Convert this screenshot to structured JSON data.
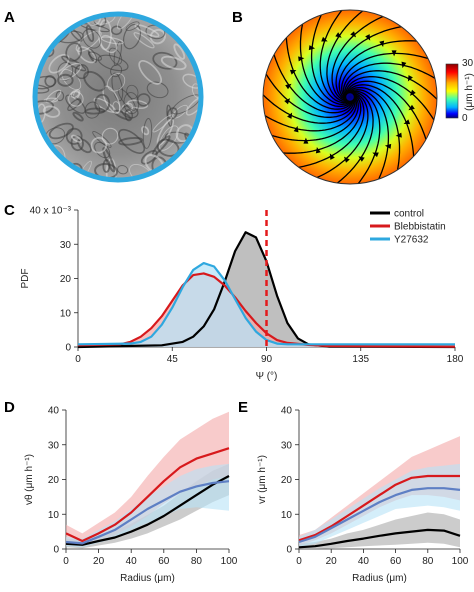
{
  "panels": {
    "a": {
      "label": "A"
    },
    "b": {
      "label": "B",
      "colorbar": {
        "max": "30",
        "min": "0",
        "unit": "(μm h⁻¹)"
      }
    },
    "c": {
      "label": "C",
      "exponent": "40 x 10⁻³"
    },
    "d": {
      "label": "D"
    },
    "e": {
      "label": "E"
    }
  },
  "colors": {
    "control": "#000000",
    "blebbistatin": "#d7191c",
    "y27632": "#2ea8df",
    "ring_a": "#2ea8df",
    "threshold_line": "#e31a1c"
  },
  "chart_data": [
    {
      "panel": "C",
      "type": "area",
      "xlabel": "Ψ (°)",
      "ylabel": "PDF",
      "xlim": [
        0,
        180
      ],
      "ylim": [
        0,
        0.04
      ],
      "x_ticks": [
        "0",
        "45",
        "90",
        "135",
        "180"
      ],
      "y_ticks": [
        "0",
        "10",
        "20",
        "30",
        "40 x 10⁻³"
      ],
      "legend_position": "top-right",
      "threshold_x": 90,
      "series": [
        {
          "name": "control",
          "color": "#000000",
          "fill": "#aaaaaa",
          "x": [
            0,
            40,
            50,
            55,
            60,
            65,
            70,
            75,
            80,
            85,
            90,
            95,
            100,
            105,
            110,
            120,
            180
          ],
          "y": [
            0,
            0.0005,
            0.0015,
            0.003,
            0.006,
            0.011,
            0.019,
            0.028,
            0.0335,
            0.032,
            0.025,
            0.015,
            0.007,
            0.0025,
            0.0008,
            0.0001,
            0
          ]
        },
        {
          "name": "Blebbistatin",
          "color": "#d7191c",
          "fill": "#f4a9a8",
          "x": [
            0,
            20,
            25,
            30,
            35,
            40,
            45,
            50,
            55,
            60,
            65,
            70,
            75,
            80,
            85,
            90,
            95,
            100,
            110,
            120,
            180
          ],
          "y": [
            0.0005,
            0.0008,
            0.0015,
            0.003,
            0.0055,
            0.009,
            0.0135,
            0.018,
            0.021,
            0.0215,
            0.0205,
            0.018,
            0.0145,
            0.0105,
            0.007,
            0.004,
            0.002,
            0.0012,
            0.0006,
            0.0003,
            0.0001
          ]
        },
        {
          "name": "Y27632",
          "color": "#2ea8df",
          "fill": "#b7e3f7",
          "x": [
            0,
            25,
            30,
            35,
            40,
            45,
            50,
            55,
            60,
            65,
            70,
            75,
            80,
            85,
            90,
            95,
            100,
            110,
            120,
            180
          ],
          "y": [
            0.0008,
            0.001,
            0.0015,
            0.003,
            0.0065,
            0.0115,
            0.0175,
            0.0225,
            0.0245,
            0.0235,
            0.0195,
            0.014,
            0.0085,
            0.0045,
            0.002,
            0.001,
            0.0008,
            0.0008,
            0.0008,
            0.0008
          ]
        }
      ]
    },
    {
      "panel": "D",
      "type": "line",
      "xlabel": "Radius (μm)",
      "ylabel": "vθ (μm h⁻¹)",
      "xlim": [
        0,
        100
      ],
      "ylim": [
        0,
        40
      ],
      "x_ticks": [
        "0",
        "20",
        "40",
        "60",
        "80",
        "100"
      ],
      "y_ticks": [
        "0",
        "10",
        "20",
        "30",
        "40"
      ],
      "series": [
        {
          "name": "control",
          "color": "#000000",
          "fill": "#aaaaaa",
          "x": [
            0,
            10,
            20,
            30,
            40,
            50,
            60,
            70,
            80,
            90,
            100
          ],
          "y": [
            1.5,
            1.2,
            2.3,
            3.3,
            5.0,
            7.0,
            9.5,
            12.5,
            15.5,
            18.5,
            21.0
          ],
          "lower": [
            0.5,
            0.2,
            1.0,
            1.8,
            3.0,
            4.5,
            6.5,
            8.5,
            11.0,
            13.5,
            15.5
          ],
          "upper": [
            3.0,
            2.5,
            4.0,
            5.3,
            7.3,
            9.8,
            12.5,
            16.0,
            19.5,
            22.5,
            24.5
          ]
        },
        {
          "name": "Blebbistatin",
          "color": "#d7191c",
          "fill": "#f4a9a8",
          "x": [
            0,
            10,
            20,
            30,
            40,
            50,
            60,
            70,
            80,
            90,
            100
          ],
          "y": [
            4.5,
            2.3,
            4.5,
            7.0,
            10.5,
            15.0,
            19.5,
            23.5,
            26.0,
            27.5,
            29.0
          ],
          "lower": [
            2.0,
            0.8,
            2.0,
            4.0,
            6.5,
            9.5,
            13.0,
            16.0,
            18.0,
            20.0,
            21.0
          ],
          "upper": [
            7.0,
            4.5,
            7.5,
            10.5,
            15.0,
            21.0,
            26.5,
            31.5,
            34.5,
            37.5,
            39.5
          ]
        },
        {
          "name": "Y27632",
          "color": "#5e7fc4",
          "fill": "#b7e3f7",
          "x": [
            0,
            10,
            20,
            30,
            40,
            50,
            60,
            70,
            80,
            90,
            100
          ],
          "y": [
            2.0,
            1.6,
            3.5,
            5.5,
            8.5,
            11.5,
            14.0,
            16.5,
            18.0,
            19.0,
            19.5
          ],
          "lower": [
            0.8,
            0.5,
            1.8,
            3.0,
            5.5,
            7.5,
            9.5,
            11.5,
            12.0,
            11.5,
            11.0
          ],
          "upper": [
            3.5,
            3.0,
            5.5,
            8.0,
            11.5,
            15.0,
            18.0,
            21.0,
            23.0,
            24.0,
            24.5
          ]
        }
      ]
    },
    {
      "panel": "E",
      "type": "line",
      "xlabel": "Radius (μm)",
      "ylabel": "vr (μm h⁻¹)",
      "xlim": [
        0,
        100
      ],
      "ylim": [
        0,
        40
      ],
      "x_ticks": [
        "0",
        "20",
        "40",
        "60",
        "80",
        "100"
      ],
      "y_ticks": [
        "0",
        "10",
        "20",
        "30",
        "40"
      ],
      "series": [
        {
          "name": "control",
          "color": "#000000",
          "fill": "#aaaaaa",
          "x": [
            0,
            10,
            20,
            30,
            40,
            50,
            60,
            70,
            80,
            90,
            100
          ],
          "y": [
            0.5,
            0.8,
            1.5,
            2.3,
            3.0,
            3.8,
            4.5,
            5.0,
            5.5,
            5.3,
            3.8
          ],
          "lower": [
            0.0,
            0.0,
            0.2,
            0.5,
            0.8,
            1.0,
            1.2,
            1.5,
            1.8,
            1.5,
            0.5
          ],
          "upper": [
            1.5,
            2.0,
            3.0,
            4.5,
            5.5,
            7.0,
            8.5,
            9.5,
            10.5,
            10.0,
            8.5
          ]
        },
        {
          "name": "Blebbistatin",
          "color": "#d7191c",
          "fill": "#f4a9a8",
          "x": [
            0,
            10,
            20,
            30,
            40,
            50,
            60,
            70,
            80,
            90,
            100
          ],
          "y": [
            2.5,
            4.0,
            6.5,
            9.5,
            12.5,
            15.5,
            18.5,
            20.5,
            21.0,
            21.0,
            21.0
          ],
          "lower": [
            1.0,
            2.5,
            4.5,
            7.0,
            9.5,
            12.0,
            14.0,
            15.5,
            15.5,
            15.0,
            14.0
          ],
          "upper": [
            4.0,
            5.5,
            9.0,
            12.5,
            16.0,
            19.5,
            23.0,
            26.5,
            28.5,
            30.5,
            32.5
          ]
        },
        {
          "name": "Y27632",
          "color": "#5e7fc4",
          "fill": "#b7e3f7",
          "x": [
            0,
            10,
            20,
            30,
            40,
            50,
            60,
            70,
            80,
            90,
            100
          ],
          "y": [
            2.0,
            3.5,
            6.0,
            8.5,
            11.0,
            13.5,
            15.5,
            17.0,
            17.5,
            17.5,
            17.0
          ],
          "lower": [
            0.5,
            1.5,
            3.5,
            5.5,
            7.5,
            9.5,
            11.5,
            12.0,
            12.5,
            12.0,
            11.0
          ],
          "upper": [
            3.5,
            5.5,
            8.5,
            11.5,
            14.5,
            17.5,
            20.0,
            22.5,
            23.5,
            24.0,
            24.5
          ]
        }
      ]
    }
  ]
}
